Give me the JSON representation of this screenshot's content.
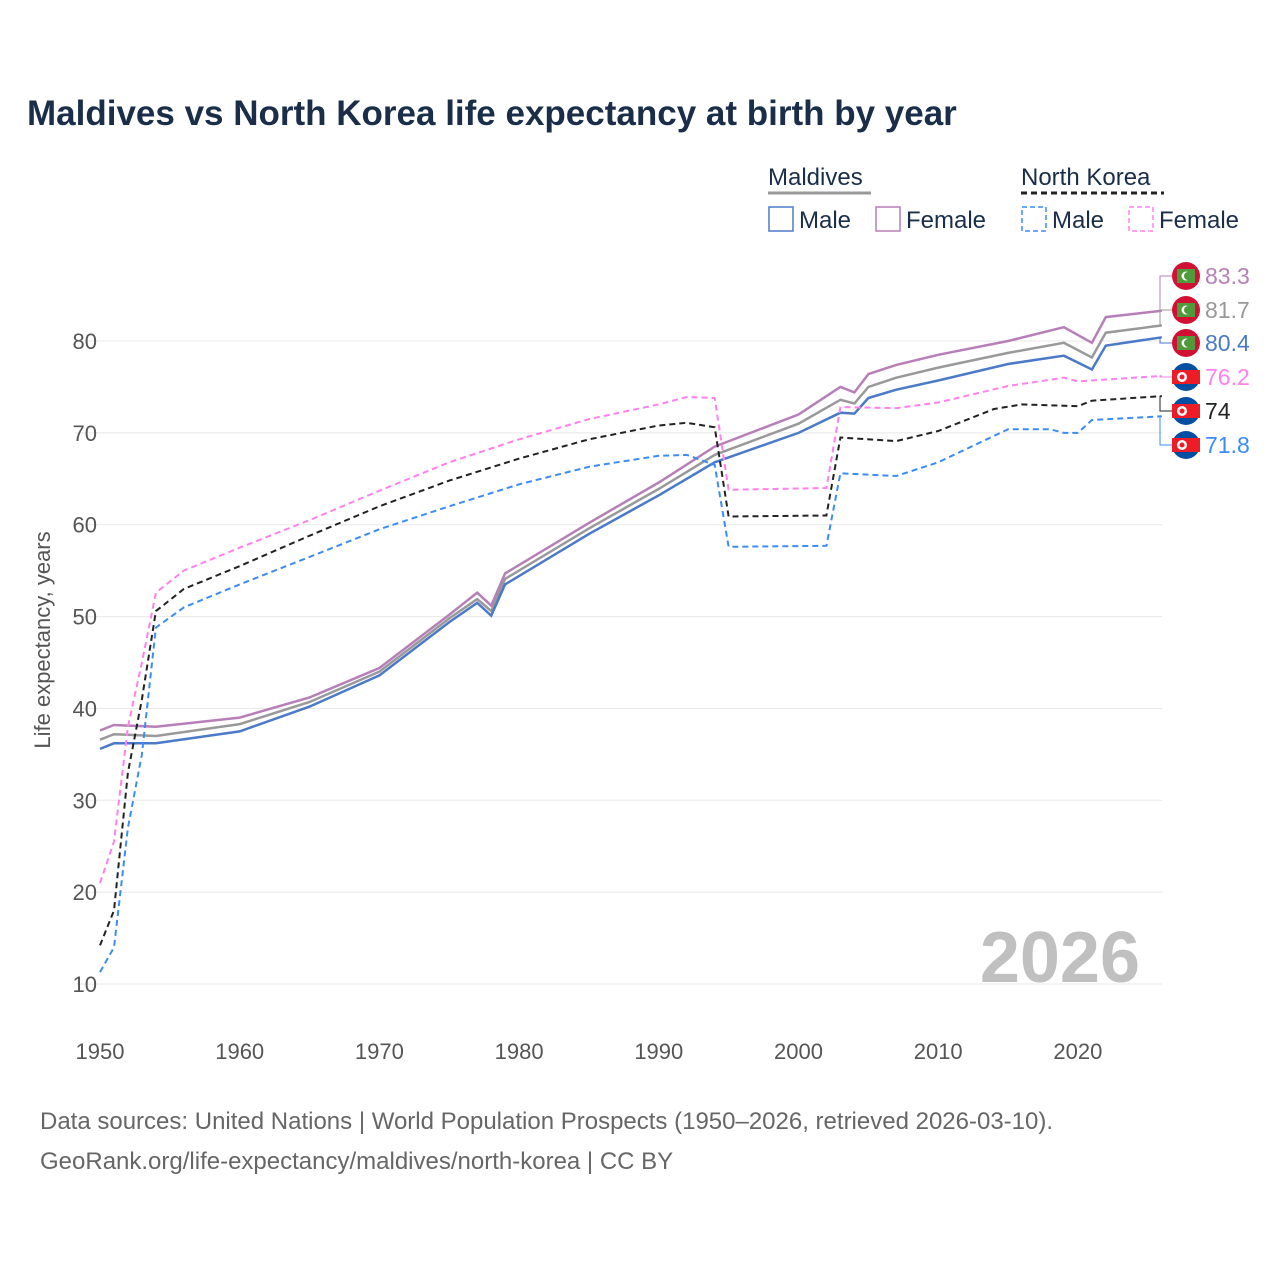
{
  "title": "Maldives vs North Korea life expectancy at birth by year",
  "watermark_year": "2026",
  "source_line1": "Data sources: United Nations | World Population Prospects (1950–2026, retrieved 2026-03-10).",
  "source_line2": "GeoRank.org/life-expectancy/maldives/north-korea | CC BY",
  "legend": {
    "groups": [
      {
        "name": "Maldives",
        "items": [
          "Male",
          "Female"
        ]
      },
      {
        "name": "North Korea",
        "items": [
          "Male",
          "Female"
        ]
      }
    ]
  },
  "chart_data": {
    "type": "line",
    "title": "Maldives vs North Korea life expectancy at birth by year",
    "xlabel": "",
    "ylabel": "Life expectancy, years",
    "xlim": [
      1950,
      2026
    ],
    "ylim": [
      10,
      88
    ],
    "xticks": [
      "1950",
      "1960",
      "1970",
      "1980",
      "1990",
      "2000",
      "2010",
      "2020"
    ],
    "yticks": [
      "10",
      "20",
      "30",
      "40",
      "50",
      "60",
      "70",
      "80"
    ],
    "grid": true,
    "series": [
      {
        "name": "Maldives Female",
        "color": "#b77fb8",
        "dash": false,
        "end_label": "83.3",
        "flag": "maldives-flag",
        "points": [
          [
            1950,
            37.6
          ],
          [
            1951,
            38.2
          ],
          [
            1954,
            38.0
          ],
          [
            1960,
            39.0
          ],
          [
            1965,
            41.2
          ],
          [
            1970,
            44.4
          ],
          [
            1975,
            50.2
          ],
          [
            1977,
            52.6
          ],
          [
            1978,
            51.2
          ],
          [
            1979,
            54.7
          ],
          [
            1985,
            60.2
          ],
          [
            1990,
            64.6
          ],
          [
            1994,
            68.5
          ],
          [
            2000,
            72.0
          ],
          [
            2003,
            75.0
          ],
          [
            2004,
            74.4
          ],
          [
            2005,
            76.4
          ],
          [
            2007,
            77.4
          ],
          [
            2010,
            78.5
          ],
          [
            2015,
            80.0
          ],
          [
            2019,
            81.5
          ],
          [
            2021,
            79.8
          ],
          [
            2022,
            82.6
          ],
          [
            2026,
            83.3
          ]
        ]
      },
      {
        "name": "Maldives Both",
        "color": "#999999",
        "dash": false,
        "end_label": "81.7",
        "flag": "maldives-flag",
        "points": [
          [
            1950,
            36.6
          ],
          [
            1951,
            37.2
          ],
          [
            1954,
            37.0
          ],
          [
            1960,
            38.3
          ],
          [
            1965,
            40.7
          ],
          [
            1970,
            44.0
          ],
          [
            1975,
            49.8
          ],
          [
            1977,
            51.9
          ],
          [
            1978,
            50.6
          ],
          [
            1979,
            54.1
          ],
          [
            1985,
            59.6
          ],
          [
            1990,
            63.9
          ],
          [
            1994,
            67.6
          ],
          [
            2000,
            71.0
          ],
          [
            2003,
            73.6
          ],
          [
            2004,
            73.2
          ],
          [
            2005,
            75.0
          ],
          [
            2007,
            76.0
          ],
          [
            2010,
            77.1
          ],
          [
            2015,
            78.7
          ],
          [
            2019,
            79.8
          ],
          [
            2021,
            78.2
          ],
          [
            2022,
            80.9
          ],
          [
            2026,
            81.7
          ]
        ]
      },
      {
        "name": "Maldives Male",
        "color": "#4a7ac8",
        "dash": false,
        "end_label": "80.4",
        "flag": "maldives-flag",
        "points": [
          [
            1950,
            35.6
          ],
          [
            1951,
            36.2
          ],
          [
            1954,
            36.2
          ],
          [
            1960,
            37.5
          ],
          [
            1965,
            40.2
          ],
          [
            1970,
            43.6
          ],
          [
            1975,
            49.4
          ],
          [
            1977,
            51.5
          ],
          [
            1978,
            50.1
          ],
          [
            1979,
            53.5
          ],
          [
            1985,
            59.0
          ],
          [
            1990,
            63.2
          ],
          [
            1994,
            66.8
          ],
          [
            2000,
            70.0
          ],
          [
            2003,
            72.2
          ],
          [
            2004,
            72.1
          ],
          [
            2005,
            73.8
          ],
          [
            2007,
            74.7
          ],
          [
            2010,
            75.7
          ],
          [
            2015,
            77.5
          ],
          [
            2019,
            78.4
          ],
          [
            2021,
            76.9
          ],
          [
            2022,
            79.5
          ],
          [
            2026,
            80.4
          ]
        ]
      },
      {
        "name": "North Korea Female",
        "color": "#ff80ee",
        "dash": true,
        "end_label": "76.2",
        "flag": "north-korea-flag",
        "points": [
          [
            1950,
            21.0
          ],
          [
            1951,
            25.5
          ],
          [
            1952,
            38.0
          ],
          [
            1953,
            45.0
          ],
          [
            1954,
            52.6
          ],
          [
            1956,
            55.0
          ],
          [
            1960,
            57.5
          ],
          [
            1965,
            60.5
          ],
          [
            1970,
            63.7
          ],
          [
            1975,
            66.8
          ],
          [
            1980,
            69.3
          ],
          [
            1985,
            71.5
          ],
          [
            1990,
            73.1
          ],
          [
            1992,
            73.9
          ],
          [
            1994,
            73.8
          ],
          [
            1995,
            63.8
          ],
          [
            2002,
            64.0
          ],
          [
            2003,
            72.8
          ],
          [
            2007,
            72.7
          ],
          [
            2010,
            73.3
          ],
          [
            2015,
            75.1
          ],
          [
            2019,
            76.0
          ],
          [
            2020,
            75.6
          ],
          [
            2026,
            76.2
          ]
        ]
      },
      {
        "name": "North Korea Both",
        "color": "#222222",
        "dash": true,
        "end_label": "74",
        "flag": "north-korea-flag",
        "points": [
          [
            1950,
            14.2
          ],
          [
            1951,
            18.0
          ],
          [
            1952,
            33.0
          ],
          [
            1953,
            41.0
          ],
          [
            1954,
            50.6
          ],
          [
            1956,
            53.0
          ],
          [
            1960,
            55.5
          ],
          [
            1965,
            58.8
          ],
          [
            1970,
            62.0
          ],
          [
            1975,
            64.8
          ],
          [
            1980,
            67.2
          ],
          [
            1985,
            69.3
          ],
          [
            1990,
            70.8
          ],
          [
            1992,
            71.1
          ],
          [
            1994,
            70.6
          ],
          [
            1995,
            60.9
          ],
          [
            2002,
            61.0
          ],
          [
            2003,
            69.5
          ],
          [
            2007,
            69.1
          ],
          [
            2010,
            70.2
          ],
          [
            2014,
            72.6
          ],
          [
            2016,
            73.1
          ],
          [
            2020,
            72.9
          ],
          [
            2021,
            73.5
          ],
          [
            2026,
            74.0
          ]
        ]
      },
      {
        "name": "North Korea Male",
        "color": "#3b8cf5",
        "dash": true,
        "end_label": "71.8",
        "flag": "north-korea-flag",
        "points": [
          [
            1950,
            11.3
          ],
          [
            1951,
            14.0
          ],
          [
            1952,
            27.0
          ],
          [
            1953,
            35.0
          ],
          [
            1954,
            48.8
          ],
          [
            1956,
            51.0
          ],
          [
            1960,
            53.5
          ],
          [
            1965,
            56.5
          ],
          [
            1970,
            59.5
          ],
          [
            1975,
            62.0
          ],
          [
            1980,
            64.4
          ],
          [
            1985,
            66.3
          ],
          [
            1987,
            66.8
          ],
          [
            1990,
            67.5
          ],
          [
            1992,
            67.6
          ],
          [
            1994,
            66.5
          ],
          [
            1995,
            57.6
          ],
          [
            2002,
            57.7
          ],
          [
            2003,
            65.6
          ],
          [
            2007,
            65.3
          ],
          [
            2010,
            66.8
          ],
          [
            2015,
            70.4
          ],
          [
            2018,
            70.4
          ],
          [
            2019,
            70.0
          ],
          [
            2020,
            70.0
          ],
          [
            2021,
            71.4
          ],
          [
            2026,
            71.8
          ]
        ]
      }
    ]
  }
}
